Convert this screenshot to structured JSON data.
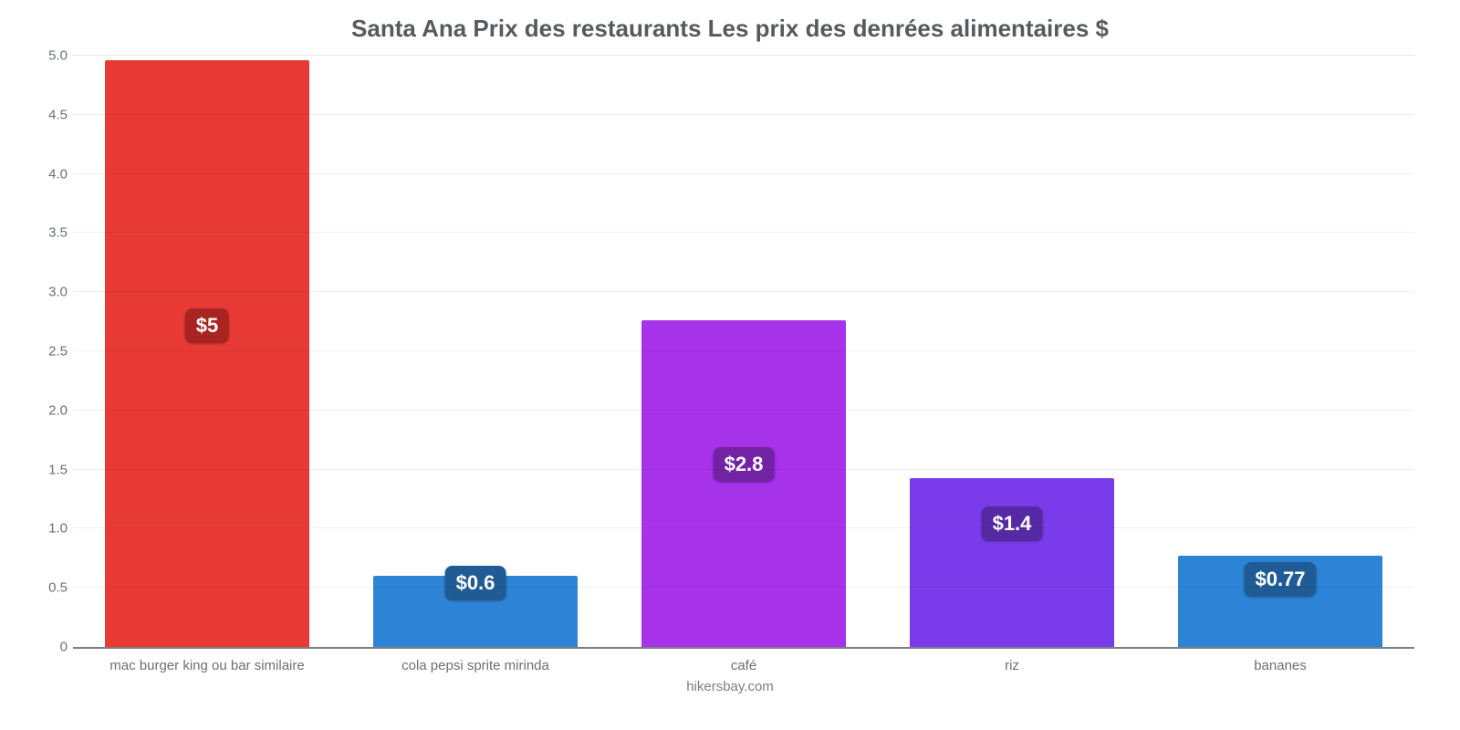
{
  "chart": {
    "type": "bar",
    "title": "Santa Ana Prix des restaurants Les prix des denrées alimentaires $",
    "title_fontsize": 26,
    "title_color": "#555a5f",
    "background_color": "#ffffff",
    "grid_color": "rgba(0,0,0,0.06)",
    "axis_color": "#7b7f84",
    "label_color": "#6b7075",
    "label_fontsize": 15,
    "value_fontsize": 22,
    "ylim": [
      0,
      5.0
    ],
    "yticks": [
      "0",
      "0.5",
      "1.0",
      "1.5",
      "2.0",
      "2.5",
      "3.0",
      "3.5",
      "4.0",
      "4.5",
      "5.0"
    ],
    "ytick_values": [
      0,
      0.5,
      1.0,
      1.5,
      2.0,
      2.5,
      3.0,
      3.5,
      4.0,
      4.5,
      5.0
    ],
    "bar_width_pct": 76,
    "credit": "hikersbay.com",
    "bars": [
      {
        "category": "mac burger king ou bar similaire",
        "value": 4.96,
        "display": "$5",
        "bar_color": "#e83a34",
        "badge_color": "#a82420",
        "badge_pos": 2.72
      },
      {
        "category": "cola pepsi sprite mirinda",
        "value": 0.6,
        "display": "$0.6",
        "bar_color": "#2d84d6",
        "badge_color": "#1f5c95",
        "badge_pos": 0.55
      },
      {
        "category": "café",
        "value": 2.76,
        "display": "$2.8",
        "bar_color": "#a632ea",
        "badge_color": "#7322a3",
        "badge_pos": 1.55
      },
      {
        "category": "riz",
        "value": 1.43,
        "display": "$1.4",
        "bar_color": "#7a3bea",
        "badge_color": "#5529a3",
        "badge_pos": 1.05
      },
      {
        "category": "bananes",
        "value": 0.77,
        "display": "$0.77",
        "bar_color": "#2d84d6",
        "badge_color": "#1f5c95",
        "badge_pos": 0.58
      }
    ]
  }
}
